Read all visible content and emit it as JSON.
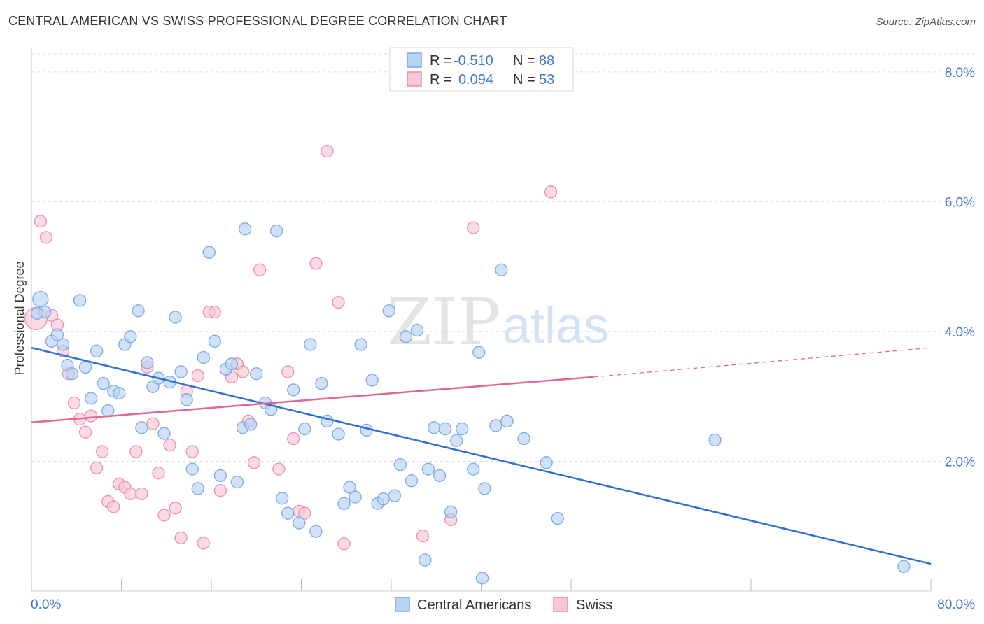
{
  "title": "CENTRAL AMERICAN VS SWISS PROFESSIONAL DEGREE CORRELATION CHART",
  "source": "Source: ZipAtlas.com",
  "watermark": {
    "zip": "ZIP",
    "atlas": "atlas"
  },
  "colors": {
    "blue_fill": "#b9d3f4",
    "blue_stroke": "#7aaae6",
    "blue_line": "#2f6fd1",
    "pink_fill": "#f8c6d6",
    "pink_stroke": "#ec8fab",
    "pink_line": "#e06890",
    "grid": "#dddddd",
    "axis_label": "#3f78c8"
  },
  "legend_top": {
    "rows": [
      {
        "r_label": "R =",
        "r_value": "-0.510",
        "n_label": "N =",
        "n_value": "88",
        "series": "blue"
      },
      {
        "r_label": "R =",
        "r_value": "0.094",
        "n_label": "N =",
        "n_value": "53",
        "series": "pink"
      }
    ]
  },
  "legend_bottom": [
    "Central Americans",
    "Swiss"
  ],
  "chart_data": {
    "type": "scatter",
    "title": "CENTRAL AMERICAN VS SWISS PROFESSIONAL DEGREE CORRELATION CHART",
    "xlabel": "",
    "ylabel": "Professional Degree",
    "xlim": [
      0,
      80
    ],
    "ylim": [
      0,
      8.3
    ],
    "x_tick_labels": [
      "0.0%",
      "80.0%"
    ],
    "y_ticks": [
      2.0,
      4.0,
      6.0,
      8.0
    ],
    "y_tick_labels": [
      "2.0%",
      "4.0%",
      "6.0%",
      "8.0%"
    ],
    "grid": true,
    "legend_position": "top-center",
    "series": [
      {
        "name": "Central Americans",
        "color": "blue",
        "trend": {
          "x": [
            0,
            80
          ],
          "y": [
            3.75,
            0.42
          ]
        },
        "points": [
          [
            0.8,
            4.5
          ],
          [
            1.2,
            4.3
          ],
          [
            1.8,
            3.85
          ],
          [
            2.3,
            3.95
          ],
          [
            2.8,
            3.8
          ],
          [
            3.2,
            3.48
          ],
          [
            3.6,
            3.35
          ],
          [
            4.3,
            4.48
          ],
          [
            4.8,
            3.45
          ],
          [
            5.3,
            2.97
          ],
          [
            5.8,
            3.7
          ],
          [
            6.4,
            3.2
          ],
          [
            6.8,
            2.78
          ],
          [
            7.3,
            3.08
          ],
          [
            7.8,
            3.05
          ],
          [
            8.3,
            3.8
          ],
          [
            8.8,
            3.92
          ],
          [
            9.5,
            4.32
          ],
          [
            9.8,
            2.52
          ],
          [
            10.3,
            3.52
          ],
          [
            10.8,
            3.15
          ],
          [
            11.3,
            3.28
          ],
          [
            11.8,
            2.43
          ],
          [
            12.3,
            3.22
          ],
          [
            12.8,
            4.22
          ],
          [
            13.3,
            3.38
          ],
          [
            13.8,
            2.95
          ],
          [
            14.3,
            1.88
          ],
          [
            14.8,
            1.58
          ],
          [
            15.3,
            3.6
          ],
          [
            15.8,
            5.22
          ],
          [
            16.3,
            3.85
          ],
          [
            16.8,
            1.78
          ],
          [
            17.3,
            3.42
          ],
          [
            17.8,
            3.5
          ],
          [
            18.3,
            1.68
          ],
          [
            18.8,
            2.52
          ],
          [
            19.0,
            5.58
          ],
          [
            19.5,
            2.57
          ],
          [
            20.0,
            3.35
          ],
          [
            20.8,
            2.9
          ],
          [
            21.3,
            2.8
          ],
          [
            21.8,
            5.55
          ],
          [
            22.3,
            1.43
          ],
          [
            22.8,
            1.2
          ],
          [
            23.3,
            3.1
          ],
          [
            23.8,
            1.05
          ],
          [
            24.3,
            2.5
          ],
          [
            24.8,
            3.8
          ],
          [
            25.3,
            0.92
          ],
          [
            25.8,
            3.2
          ],
          [
            26.3,
            2.62
          ],
          [
            27.3,
            2.42
          ],
          [
            27.8,
            1.35
          ],
          [
            28.3,
            1.6
          ],
          [
            28.8,
            1.45
          ],
          [
            29.3,
            3.8
          ],
          [
            29.8,
            2.48
          ],
          [
            30.3,
            3.25
          ],
          [
            30.8,
            1.35
          ],
          [
            31.3,
            1.42
          ],
          [
            31.8,
            4.32
          ],
          [
            32.3,
            1.47
          ],
          [
            32.8,
            1.95
          ],
          [
            33.3,
            3.92
          ],
          [
            33.8,
            1.7
          ],
          [
            34.3,
            4.02
          ],
          [
            35.0,
            0.48
          ],
          [
            35.3,
            1.88
          ],
          [
            35.8,
            2.52
          ],
          [
            36.3,
            1.78
          ],
          [
            36.8,
            2.5
          ],
          [
            37.3,
            1.22
          ],
          [
            37.8,
            2.32
          ],
          [
            38.3,
            2.5
          ],
          [
            39.3,
            1.88
          ],
          [
            39.8,
            3.68
          ],
          [
            40.1,
            0.2
          ],
          [
            40.3,
            1.58
          ],
          [
            41.3,
            2.55
          ],
          [
            41.8,
            4.95
          ],
          [
            42.3,
            2.62
          ],
          [
            43.8,
            2.35
          ],
          [
            45.8,
            1.98
          ],
          [
            46.8,
            1.12
          ],
          [
            60.8,
            2.33
          ],
          [
            77.6,
            0.38
          ],
          [
            0.5,
            4.28
          ]
        ]
      },
      {
        "name": "Swiss",
        "color": "pink",
        "trend": {
          "x": [
            0,
            50
          ],
          "y": [
            2.6,
            3.3
          ],
          "dashed_to": [
            80,
            3.75
          ]
        },
        "points": [
          [
            0.4,
            4.2
          ],
          [
            0.8,
            5.7
          ],
          [
            1.3,
            5.45
          ],
          [
            1.8,
            4.25
          ],
          [
            2.3,
            4.1
          ],
          [
            2.8,
            3.7
          ],
          [
            3.3,
            3.35
          ],
          [
            3.8,
            2.9
          ],
          [
            4.3,
            2.65
          ],
          [
            4.8,
            2.45
          ],
          [
            5.3,
            2.7
          ],
          [
            5.8,
            1.9
          ],
          [
            6.3,
            2.15
          ],
          [
            6.8,
            1.38
          ],
          [
            7.3,
            1.3
          ],
          [
            7.8,
            1.65
          ],
          [
            8.3,
            1.6
          ],
          [
            8.8,
            1.5
          ],
          [
            9.3,
            2.15
          ],
          [
            9.8,
            1.5
          ],
          [
            10.3,
            3.45
          ],
          [
            10.8,
            2.58
          ],
          [
            11.3,
            1.82
          ],
          [
            11.8,
            1.17
          ],
          [
            12.3,
            2.25
          ],
          [
            12.8,
            1.28
          ],
          [
            13.3,
            0.82
          ],
          [
            13.8,
            3.08
          ],
          [
            14.3,
            2.15
          ],
          [
            14.8,
            3.32
          ],
          [
            15.3,
            0.74
          ],
          [
            15.8,
            4.3
          ],
          [
            16.3,
            4.3
          ],
          [
            16.8,
            1.55
          ],
          [
            17.8,
            3.3
          ],
          [
            18.3,
            3.5
          ],
          [
            18.8,
            3.38
          ],
          [
            19.3,
            2.62
          ],
          [
            19.8,
            1.98
          ],
          [
            20.3,
            4.95
          ],
          [
            22.0,
            1.88
          ],
          [
            22.8,
            3.38
          ],
          [
            23.3,
            2.35
          ],
          [
            23.8,
            1.23
          ],
          [
            24.3,
            1.2
          ],
          [
            25.3,
            5.05
          ],
          [
            26.3,
            6.78
          ],
          [
            27.3,
            4.45
          ],
          [
            27.8,
            0.73
          ],
          [
            34.8,
            0.85
          ],
          [
            37.3,
            1.1
          ],
          [
            39.3,
            5.6
          ],
          [
            46.2,
            6.15
          ]
        ]
      }
    ]
  }
}
